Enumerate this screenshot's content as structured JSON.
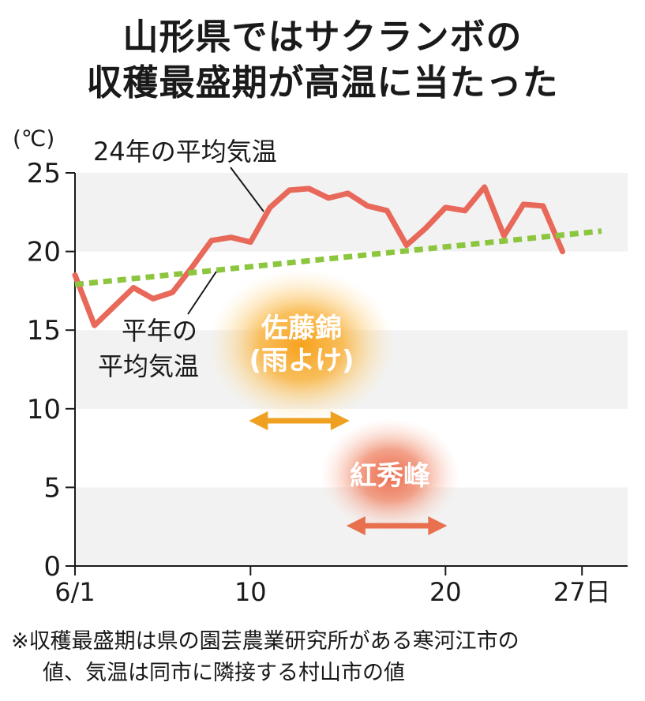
{
  "title": [
    "山形県ではサクランボの",
    "収穫最盛期が高温に当たった"
  ],
  "note": [
    "※収穫最盛期は県の園芸農業研究所がある寒河江市の",
    "値、気温は同市に隣接する村山市の値"
  ],
  "colors": {
    "actual": "#e8685a",
    "normal": "#8cc63f",
    "sato": "#f0a020",
    "beni": "#e8704f",
    "band": "#f2f2f2"
  },
  "chart_data": {
    "type": "line",
    "unit_label": "(℃)",
    "x_tick_labels": [
      "6/1",
      "10",
      "20",
      "27日"
    ],
    "x_ticks": [
      1,
      10,
      20,
      27
    ],
    "xlim": [
      1,
      28
    ],
    "ylim": [
      0,
      25
    ],
    "y_ticks": [
      0,
      5,
      10,
      15,
      20,
      25
    ],
    "y_tick_labels": [
      "0",
      "5",
      "10",
      "15",
      "20",
      "25"
    ],
    "grid_bands": true,
    "series": [
      {
        "name": "24年の平均気温",
        "style": "solid",
        "x": [
          1,
          2,
          3,
          4,
          5,
          6,
          7,
          8,
          9,
          10,
          11,
          12,
          13,
          14,
          15,
          16,
          17,
          18,
          19,
          20,
          21,
          22,
          23,
          24,
          25,
          26
        ],
        "y": [
          18.5,
          15.3,
          16.5,
          17.7,
          17.0,
          17.4,
          19.0,
          20.7,
          20.9,
          20.6,
          22.8,
          23.9,
          24.0,
          23.4,
          23.7,
          22.9,
          22.6,
          20.4,
          21.5,
          22.8,
          22.6,
          24.1,
          21.0,
          23.0,
          22.9,
          20.0
        ]
      },
      {
        "name": "平年の平均気温",
        "style": "dotted",
        "x": [
          1,
          28
        ],
        "y": [
          17.9,
          21.3
        ]
      }
    ],
    "periods": [
      {
        "name": "佐藤錦",
        "sub": "(雨よけ)",
        "start": 10,
        "end": 15
      },
      {
        "name": "紅秀峰",
        "start": 15,
        "end": 20
      }
    ]
  }
}
